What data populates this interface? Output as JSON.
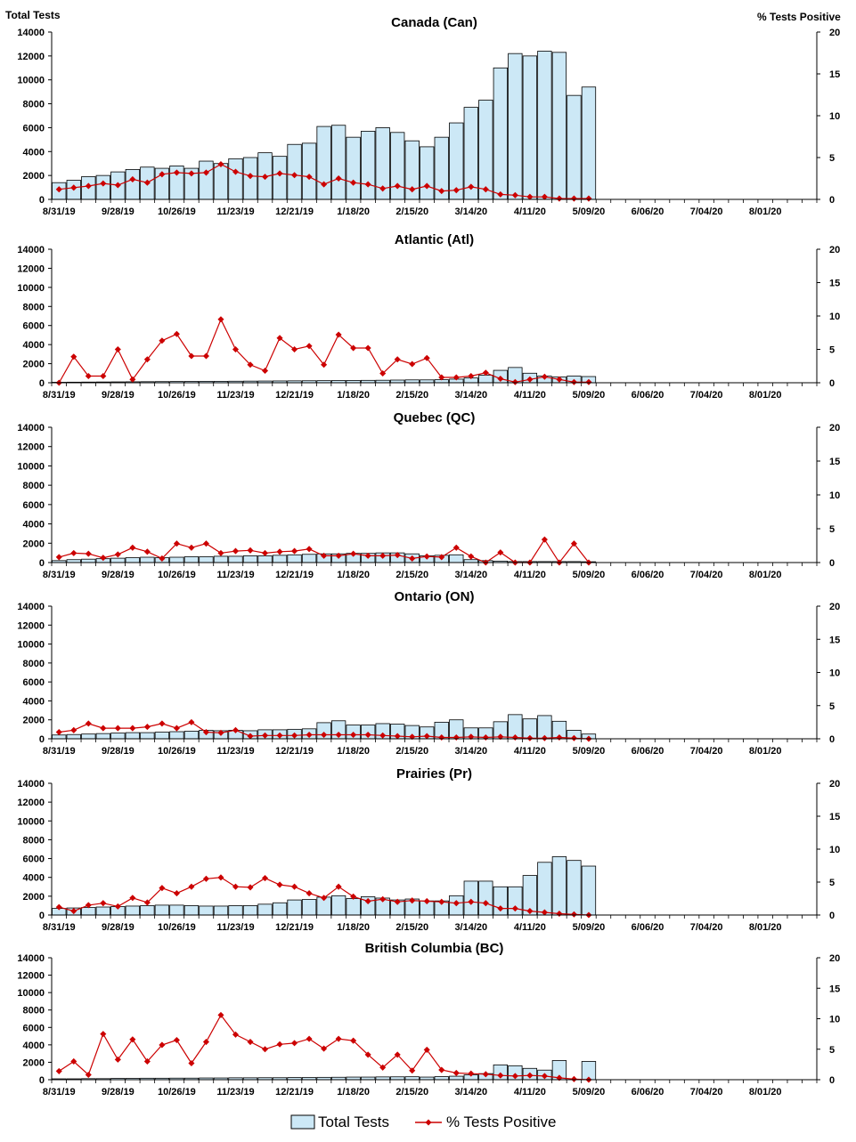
{
  "y_left_title": "Total Tests",
  "y_right_title": "% Tests Positive",
  "legend": {
    "bars": "Total Tests",
    "line": "% Tests Positive"
  },
  "colors": {
    "bar_fill": "#cce8f6",
    "bar_stroke": "#000000",
    "line": "#cc0000"
  },
  "chart_data": [
    {
      "type": "bar+line",
      "title": "Canada (Can)",
      "x_tick_labels": [
        "8/31/19",
        "9/28/19",
        "10/26/19",
        "11/23/19",
        "12/21/19",
        "1/18/20",
        "2/15/20",
        "3/14/20",
        "4/11/20",
        "5/09/20",
        "6/06/20",
        "7/04/20",
        "8/01/20"
      ],
      "ylim_left": [
        0,
        14000
      ],
      "yticks_left": [
        0,
        2000,
        4000,
        6000,
        8000,
        10000,
        12000,
        14000
      ],
      "ylim_right": [
        0,
        20
      ],
      "yticks_right": [
        0,
        5,
        10,
        15,
        20
      ],
      "weeks_total": 52,
      "total_tests": [
        1400,
        1600,
        1900,
        2000,
        2300,
        2500,
        2700,
        2600,
        2800,
        2600,
        3200,
        3000,
        3400,
        3500,
        3900,
        3600,
        4600,
        4700,
        6100,
        6200,
        5200,
        5700,
        6000,
        5600,
        4900,
        4400,
        5200,
        6400,
        7700,
        8300,
        11000,
        12200,
        12000,
        12400,
        12300,
        8700,
        9400
      ],
      "pct_positive": [
        1.2,
        1.4,
        1.6,
        1.9,
        1.7,
        2.4,
        2.0,
        3.0,
        3.2,
        3.1,
        3.2,
        4.2,
        3.3,
        2.8,
        2.7,
        3.1,
        2.9,
        2.7,
        1.8,
        2.5,
        2.0,
        1.8,
        1.3,
        1.6,
        1.2,
        1.6,
        1.0,
        1.1,
        1.5,
        1.2,
        0.6,
        0.5,
        0.3,
        0.3,
        0.1,
        0.1,
        0.1
      ]
    },
    {
      "type": "bar+line",
      "title": "Atlantic (Atl)",
      "x_tick_labels": [
        "8/31/19",
        "9/28/19",
        "10/26/19",
        "11/23/19",
        "12/21/19",
        "1/18/20",
        "2/15/20",
        "3/14/20",
        "4/11/20",
        "5/09/20",
        "6/06/20",
        "7/04/20",
        "8/01/20"
      ],
      "ylim_left": [
        0,
        14000
      ],
      "yticks_left": [
        0,
        2000,
        4000,
        6000,
        8000,
        10000,
        12000,
        14000
      ],
      "ylim_right": [
        0,
        20
      ],
      "yticks_right": [
        0,
        5,
        10,
        15,
        20
      ],
      "weeks_total": 52,
      "total_tests": [
        50,
        60,
        70,
        80,
        90,
        100,
        110,
        120,
        130,
        140,
        150,
        150,
        160,
        170,
        180,
        190,
        200,
        210,
        220,
        230,
        240,
        250,
        260,
        280,
        300,
        300,
        320,
        380,
        500,
        800,
        1300,
        1600,
        1000,
        700,
        600,
        700,
        650
      ],
      "pct_positive": [
        0.0,
        3.9,
        1.0,
        1.0,
        5.0,
        0.5,
        3.5,
        6.3,
        7.3,
        4.0,
        4.0,
        9.5,
        5.0,
        2.7,
        1.8,
        6.7,
        5.0,
        5.5,
        2.7,
        7.2,
        5.2,
        5.2,
        1.4,
        3.5,
        2.8,
        3.7,
        0.8,
        0.8,
        1.0,
        1.5,
        0.6,
        0.1,
        0.5,
        0.9,
        0.5,
        0.1,
        0.1
      ]
    },
    {
      "type": "bar+line",
      "title": "Quebec (QC)",
      "x_tick_labels": [
        "8/31/19",
        "9/28/19",
        "10/26/19",
        "11/23/19",
        "12/21/19",
        "1/18/20",
        "2/15/20",
        "3/14/20",
        "4/11/20",
        "5/09/20",
        "6/06/20",
        "7/04/20",
        "8/01/20"
      ],
      "ylim_left": [
        0,
        14000
      ],
      "yticks_left": [
        0,
        2000,
        4000,
        6000,
        8000,
        10000,
        12000,
        14000
      ],
      "ylim_right": [
        0,
        20
      ],
      "yticks_right": [
        0,
        5,
        10,
        15,
        20
      ],
      "weeks_total": 52,
      "total_tests": [
        200,
        300,
        350,
        400,
        450,
        500,
        550,
        500,
        550,
        600,
        600,
        650,
        650,
        700,
        700,
        750,
        800,
        850,
        900,
        900,
        950,
        950,
        1000,
        1000,
        900,
        700,
        750,
        800,
        300,
        200,
        150,
        100,
        100,
        100,
        100,
        100,
        80
      ],
      "pct_positive": [
        0.8,
        1.4,
        1.3,
        0.7,
        1.2,
        2.2,
        1.6,
        0.6,
        2.8,
        2.2,
        2.8,
        1.4,
        1.7,
        1.8,
        1.4,
        1.6,
        1.7,
        2.0,
        1.0,
        1.0,
        1.3,
        1.0,
        1.0,
        1.1,
        0.6,
        0.9,
        0.8,
        2.2,
        0.9,
        0.0,
        1.5,
        0.0,
        0.0,
        3.4,
        0.0,
        2.8,
        0.0
      ]
    },
    {
      "type": "bar+line",
      "title": "Ontario (ON)",
      "x_tick_labels": [
        "8/31/19",
        "9/28/19",
        "10/26/19",
        "11/23/19",
        "12/21/19",
        "1/18/20",
        "2/15/20",
        "3/14/20",
        "4/11/20",
        "5/09/20",
        "6/06/20",
        "7/04/20",
        "8/01/20"
      ],
      "ylim_left": [
        0,
        14000
      ],
      "yticks_left": [
        0,
        2000,
        4000,
        6000,
        8000,
        10000,
        12000,
        14000
      ],
      "ylim_right": [
        0,
        20
      ],
      "yticks_right": [
        0,
        5,
        10,
        15,
        20
      ],
      "weeks_total": 52,
      "total_tests": [
        400,
        450,
        500,
        550,
        600,
        650,
        650,
        700,
        750,
        800,
        900,
        850,
        900,
        850,
        950,
        950,
        1000,
        1050,
        1700,
        1900,
        1450,
        1450,
        1600,
        1550,
        1400,
        1250,
        1750,
        2000,
        1150,
        1150,
        1800,
        2550,
        2100,
        2450,
        1850,
        900,
        500
      ],
      "pct_positive": [
        1.0,
        1.3,
        2.3,
        1.6,
        1.6,
        1.6,
        1.8,
        2.3,
        1.6,
        2.5,
        1.0,
        0.9,
        1.3,
        0.4,
        0.5,
        0.5,
        0.5,
        0.6,
        0.6,
        0.6,
        0.6,
        0.6,
        0.5,
        0.4,
        0.3,
        0.4,
        0.2,
        0.2,
        0.3,
        0.2,
        0.3,
        0.2,
        0.1,
        0.1,
        0.2,
        0.1,
        0.0
      ]
    },
    {
      "type": "bar+line",
      "title": "Prairies (Pr)",
      "x_tick_labels": [
        "8/31/19",
        "9/28/19",
        "10/26/19",
        "11/23/19",
        "12/21/19",
        "1/18/20",
        "2/15/20",
        "3/14/20",
        "4/11/20",
        "5/09/20",
        "6/06/20",
        "7/04/20",
        "8/01/20"
      ],
      "ylim_left": [
        0,
        14000
      ],
      "yticks_left": [
        0,
        2000,
        4000,
        6000,
        8000,
        10000,
        12000,
        14000
      ],
      "ylim_right": [
        0,
        20
      ],
      "yticks_right": [
        0,
        5,
        10,
        15,
        20
      ],
      "weeks_total": 52,
      "total_tests": [
        700,
        750,
        800,
        850,
        900,
        950,
        1000,
        1050,
        1050,
        1000,
        950,
        950,
        1000,
        1000,
        1150,
        1300,
        1600,
        1650,
        1900,
        2050,
        1750,
        1950,
        1800,
        1600,
        1700,
        1500,
        1500,
        2050,
        3600,
        3600,
        3000,
        3000,
        4200,
        5600,
        6200,
        5800,
        5200
      ],
      "pct_positive": [
        1.2,
        0.6,
        1.5,
        1.8,
        1.3,
        2.6,
        1.9,
        4.1,
        3.3,
        4.3,
        5.5,
        5.7,
        4.3,
        4.2,
        5.6,
        4.6,
        4.3,
        3.3,
        2.6,
        4.3,
        2.8,
        2.1,
        2.4,
        2.0,
        2.2,
        2.1,
        2.0,
        1.8,
        2.0,
        1.8,
        1.0,
        1.0,
        0.6,
        0.4,
        0.2,
        0.1,
        0.0
      ]
    },
    {
      "type": "bar+line",
      "title": "British Columbia (BC)",
      "x_tick_labels": [
        "8/31/19",
        "9/28/19",
        "10/26/19",
        "11/23/19",
        "12/21/19",
        "1/18/20",
        "2/15/20",
        "3/14/20",
        "4/11/20",
        "5/09/20",
        "6/06/20",
        "7/04/20",
        "8/01/20"
      ],
      "ylim_left": [
        0,
        14000
      ],
      "yticks_left": [
        0,
        2000,
        4000,
        6000,
        8000,
        10000,
        12000,
        14000
      ],
      "ylim_right": [
        0,
        20
      ],
      "yticks_right": [
        0,
        5,
        10,
        15,
        20
      ],
      "weeks_total": 52,
      "total_tests": [
        100,
        100,
        120,
        120,
        150,
        150,
        170,
        170,
        180,
        180,
        200,
        200,
        220,
        220,
        230,
        230,
        250,
        250,
        270,
        280,
        300,
        300,
        320,
        330,
        340,
        300,
        350,
        400,
        550,
        700,
        1700,
        1600,
        1300,
        1100,
        2200,
        0,
        2100
      ],
      "pct_positive": [
        1.4,
        3.0,
        0.8,
        7.5,
        3.3,
        6.6,
        3.0,
        5.7,
        6.5,
        2.7,
        6.2,
        10.6,
        7.4,
        6.2,
        5.0,
        5.8,
        6.0,
        6.7,
        5.1,
        6.7,
        6.4,
        4.1,
        2.0,
        4.1,
        1.5,
        4.9,
        1.6,
        1.1,
        1.0,
        0.9,
        0.7,
        0.6,
        0.7,
        0.6,
        0.3,
        0.1,
        0.0
      ]
    }
  ]
}
